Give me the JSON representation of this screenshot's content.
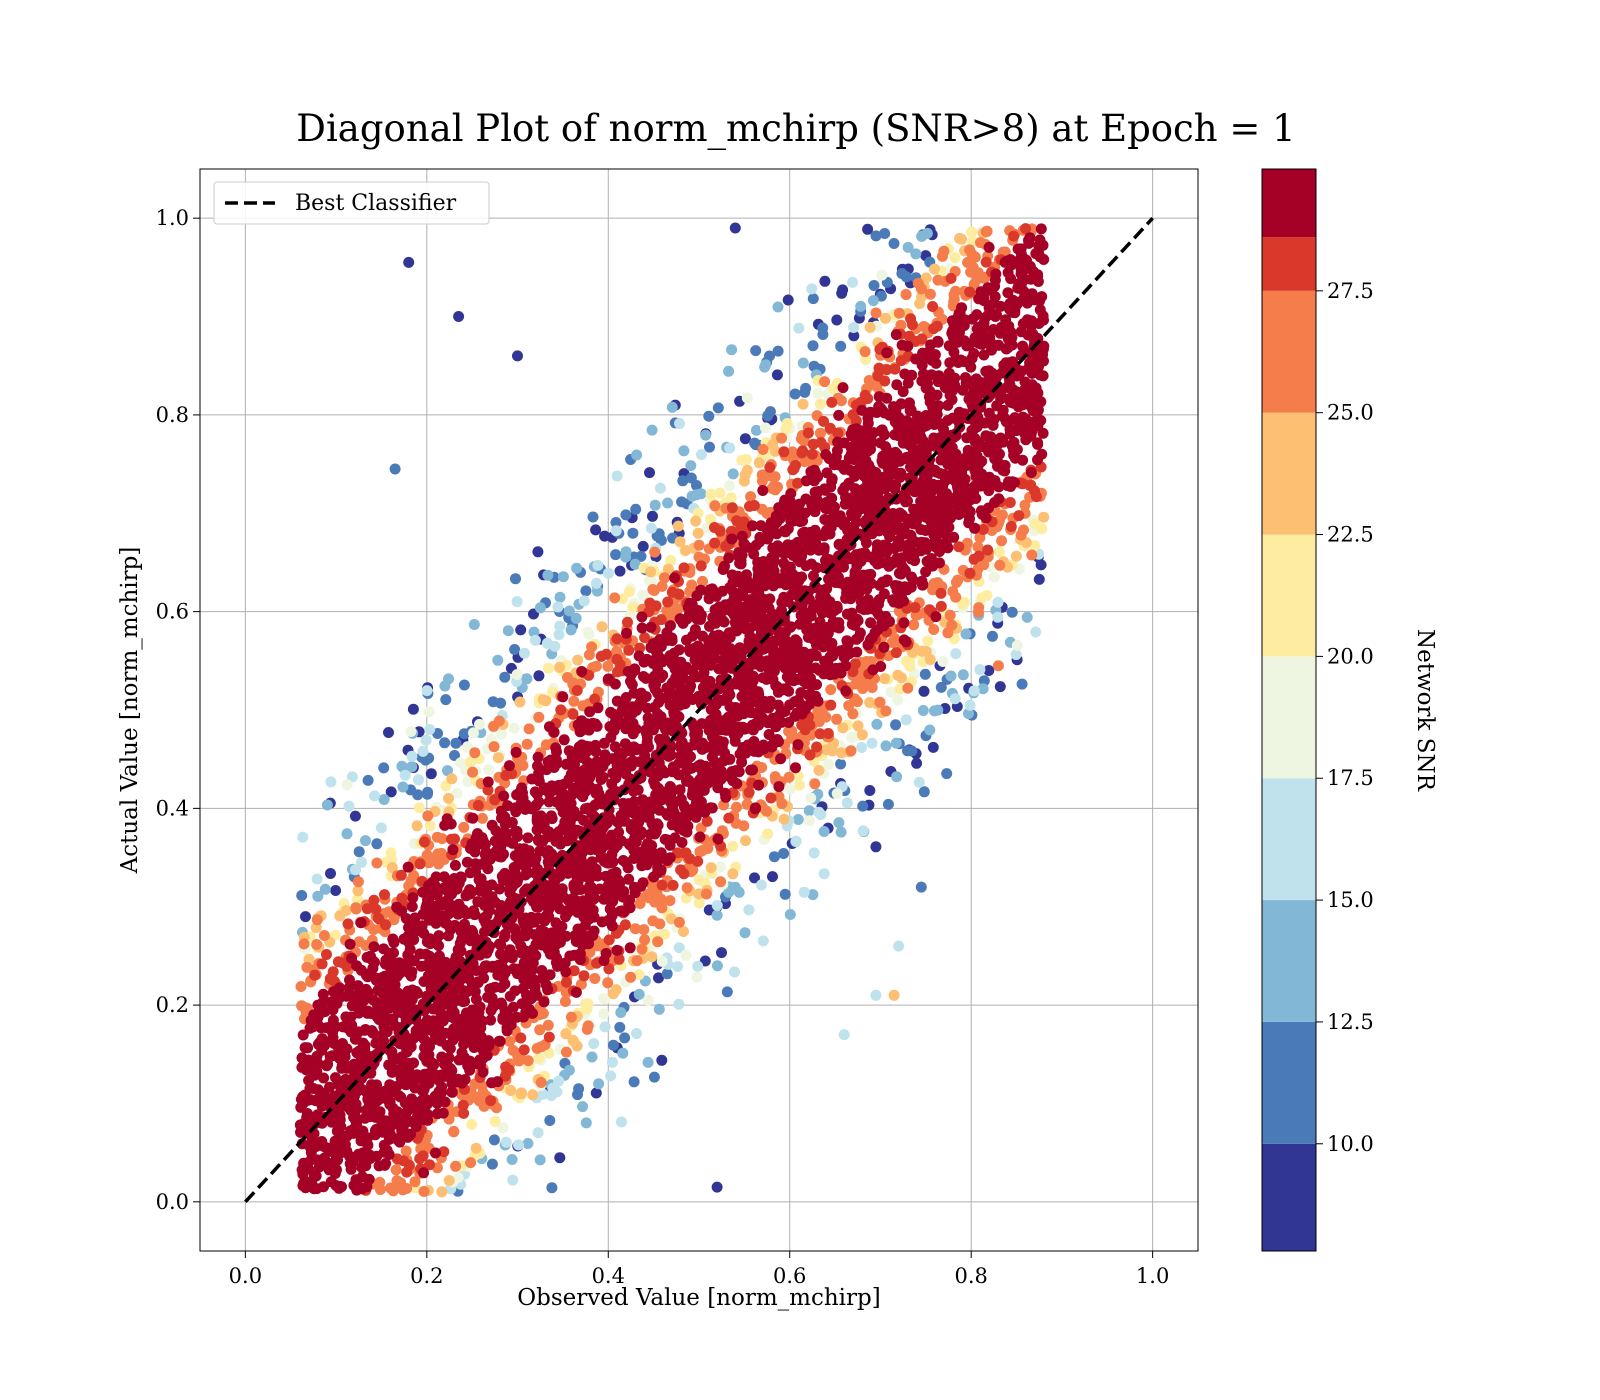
{
  "chart_data": {
    "type": "scatter",
    "title": "Diagonal Plot of norm_mchirp (SNR>8) at Epoch = 1",
    "xlabel": "Observed Value [norm_mchirp]",
    "ylabel": "Actual Value [norm_mchirp]",
    "xlim": [
      -0.05,
      1.05
    ],
    "ylim": [
      -0.05,
      1.05
    ],
    "xticks": [
      "0.0",
      "0.2",
      "0.4",
      "0.6",
      "0.8",
      "1.0"
    ],
    "yticks": [
      "0.0",
      "0.2",
      "0.4",
      "0.6",
      "0.8",
      "1.0"
    ],
    "grid": true,
    "legend": {
      "placement": "upper-left",
      "entries": [
        {
          "label": "Best Classifier",
          "style": "dashed",
          "color": "#000000"
        }
      ]
    },
    "reference_line": {
      "name": "Best Classifier",
      "x": [
        0.0,
        1.0
      ],
      "y": [
        0.0,
        1.0
      ]
    },
    "colorbar": {
      "label": "Network SNR",
      "range": [
        7.8,
        30.0
      ],
      "ticks": [
        "10.0",
        "12.5",
        "15.0",
        "17.5",
        "20.0",
        "22.5",
        "25.0",
        "27.5"
      ],
      "bands": [
        {
          "from": 7.8,
          "to": 10.0,
          "color": "#313695"
        },
        {
          "from": 10.0,
          "to": 12.5,
          "color": "#4a7ab7"
        },
        {
          "from": 12.5,
          "to": 15.0,
          "color": "#82b7d6"
        },
        {
          "from": 15.0,
          "to": 17.5,
          "color": "#bfe2ed"
        },
        {
          "from": 17.5,
          "to": 20.0,
          "color": "#eef6e1"
        },
        {
          "from": 20.0,
          "to": 22.5,
          "color": "#feeda1"
        },
        {
          "from": 22.5,
          "to": 25.0,
          "color": "#fdbf71"
        },
        {
          "from": 25.0,
          "to": 27.5,
          "color": "#f47d4b"
        },
        {
          "from": 27.5,
          "to": 28.6,
          "color": "#da382a"
        },
        {
          "from": 28.6,
          "to": 30.0,
          "color": "#a50026"
        }
      ]
    },
    "distribution_summary": {
      "spread_perpendicular_to_diagonal": 0.13,
      "x_range": [
        0.06,
        0.88
      ],
      "y_range": [
        0.0,
        1.0
      ],
      "high_snr_band_halfwidth": 0.12,
      "low_snr_regions": [
        "upper-left-edge",
        "lower-edge-around-x-0.4"
      ]
    },
    "sample_points": [
      {
        "x": 0.18,
        "y": 0.955,
        "snr": 9.0
      },
      {
        "x": 0.54,
        "y": 0.99,
        "snr": 9.5
      },
      {
        "x": 0.88,
        "y": 0.87,
        "snr": 29.5
      },
      {
        "x": 0.83,
        "y": 0.545,
        "snr": 25.5
      },
      {
        "x": 0.66,
        "y": 0.17,
        "snr": 16.0
      },
      {
        "x": 0.715,
        "y": 0.21,
        "snr": 24.0
      },
      {
        "x": 0.52,
        "y": 0.015,
        "snr": 9.0
      },
      {
        "x": 0.165,
        "y": 0.745,
        "snr": 11.0
      },
      {
        "x": 0.235,
        "y": 0.9,
        "snr": 9.0
      },
      {
        "x": 0.3,
        "y": 0.86,
        "snr": 9.0
      },
      {
        "x": 0.745,
        "y": 0.32,
        "snr": 11.0
      },
      {
        "x": 0.72,
        "y": 0.26,
        "snr": 16.0
      },
      {
        "x": 0.695,
        "y": 0.21,
        "snr": 15.0
      },
      {
        "x": 0.08,
        "y": 0.2,
        "snr": 29.5
      },
      {
        "x": 0.07,
        "y": 0.02,
        "snr": 29.0
      }
    ]
  }
}
